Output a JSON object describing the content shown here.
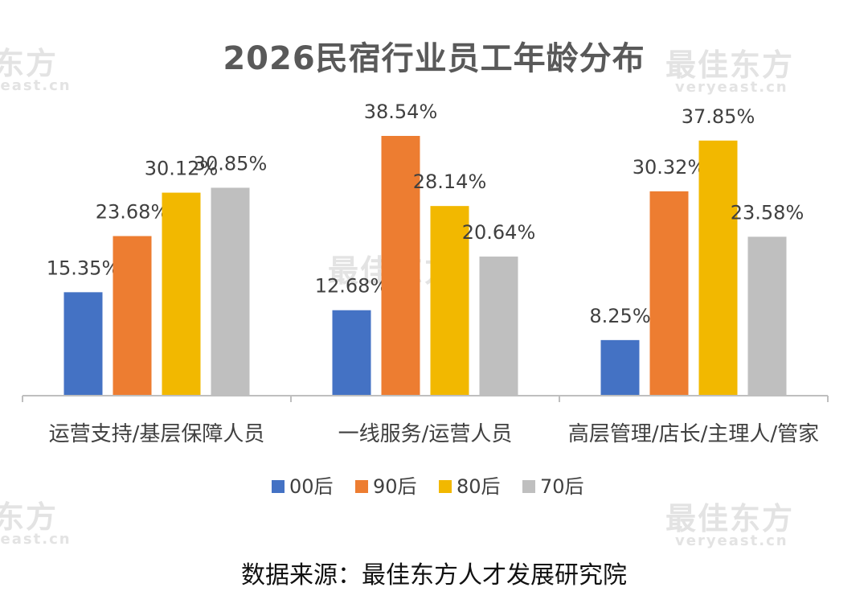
{
  "watermark": {
    "brand": "最佳东方",
    "domain": "veryeast.cn"
  },
  "footer": {
    "source": "数据来源：最佳东方人才发展研究院"
  },
  "chart_data": {
    "type": "bar",
    "title": "2026民宿行业员工年龄分布",
    "categories": [
      "运营支持/基层保障人员",
      "一线服务/运营人员",
      "高层管理/店长/主理人/管家"
    ],
    "series": [
      {
        "name": "00后",
        "color": "#4472C4",
        "values": [
          15.35,
          12.68,
          8.25
        ],
        "labels": [
          "15.35%",
          "12.68%",
          "8.25%"
        ]
      },
      {
        "name": "90后",
        "color": "#ED7D31",
        "values": [
          23.68,
          38.54,
          30.32
        ],
        "labels": [
          "23.68%",
          "38.54%",
          "30.32%"
        ]
      },
      {
        "name": "80后",
        "color": "#F2B800",
        "values": [
          30.12,
          28.14,
          37.85
        ],
        "labels": [
          "30.12%",
          "28.14%",
          "37.85%"
        ]
      },
      {
        "name": "70后",
        "color": "#BFBFBF",
        "values": [
          30.85,
          20.64,
          23.58
        ],
        "labels": [
          "30.85%",
          "20.64%",
          "23.58%"
        ]
      }
    ],
    "ylim": [
      0,
      42
    ],
    "grid": false,
    "legend": "bottom"
  }
}
